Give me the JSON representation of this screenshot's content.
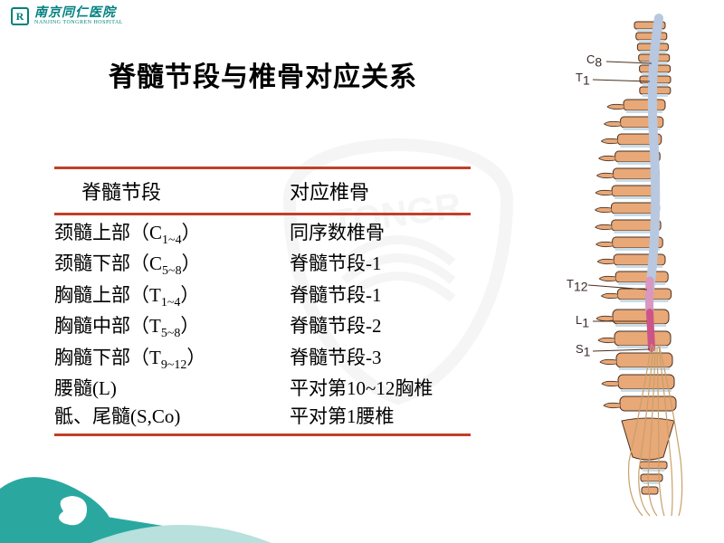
{
  "hospital": {
    "cn": "南京同仁医院",
    "en": "NANJING TONGREN HOSPITAL",
    "logo_letter": "R"
  },
  "title": "脊髓节段与椎骨对应关系",
  "table": {
    "headers": {
      "col1": "脊髓节段",
      "col2": "对应椎骨"
    },
    "rows": [
      {
        "seg_prefix": "颈髓上部（C",
        "seg_sub": "1~4",
        "seg_suffix": "）",
        "vert": "同序数椎骨"
      },
      {
        "seg_prefix": "颈髓下部（C",
        "seg_sub": "5~8",
        "seg_suffix": "）",
        "vert": "脊髓节段-1"
      },
      {
        "seg_prefix": "胸髓上部（T",
        "seg_sub": "1~4",
        "seg_suffix": "）",
        "vert": "脊髓节段-1"
      },
      {
        "seg_prefix": "胸髓中部（T",
        "seg_sub": "5~8",
        "seg_suffix": "）",
        "vert": "脊髓节段-2"
      },
      {
        "seg_prefix": "胸髓下部（T",
        "seg_sub": "9~12",
        "seg_suffix": "）",
        "vert": "脊髓节段-3"
      },
      {
        "seg_prefix": "腰髓(L)",
        "seg_sub": "",
        "seg_suffix": "",
        "vert": "平对第10~12胸椎"
      },
      {
        "seg_prefix": "骶、尾髓(S,Co)",
        "seg_sub": "",
        "seg_suffix": "",
        "vert": "平对第1腰椎"
      }
    ]
  },
  "spine_labels": {
    "c8_pre": "C",
    "c8_sub": "8",
    "t1_pre": "T",
    "t1_sub": "1",
    "t12_pre": "T",
    "t12_sub": "12",
    "l1_pre": "L",
    "l1_sub": "1",
    "s1_pre": "S",
    "s1_sub": "1"
  },
  "colors": {
    "accent_line": "#c04028",
    "brand_teal": "#008080",
    "vertebra_fill": "#e8a878",
    "vertebra_stroke": "#4a3020",
    "cord_top": "#b8c8e0",
    "cord_mid": "#d898c0",
    "cord_low": "#cc5588",
    "wave_teal": "#2aa8a0",
    "disc": "#c8dce8"
  }
}
